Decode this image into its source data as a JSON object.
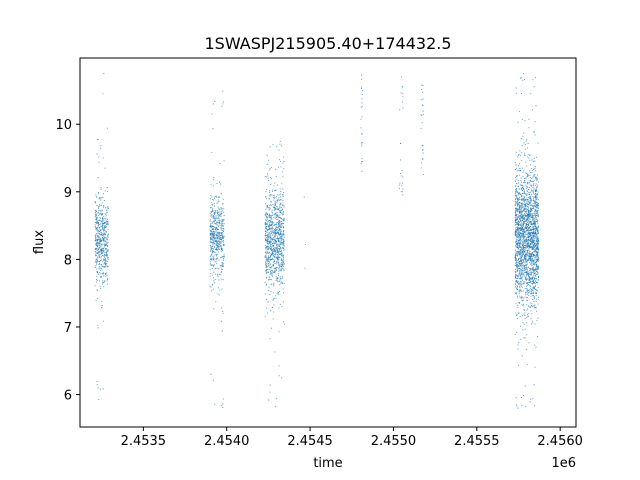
{
  "chart_data": {
    "type": "scatter",
    "title": "1SWASPJ215905.40+174432.5",
    "xlabel": "time",
    "ylabel": "flux",
    "x_offset_label": "1e6",
    "xlim": [
      2453120,
      2456095
    ],
    "ylim": [
      5.52,
      10.98
    ],
    "x_ticks": [
      2453500,
      2454000,
      2454500,
      2455000,
      2455500,
      2456000
    ],
    "x_tick_labels": [
      "2.4535",
      "2.4540",
      "2.4545",
      "2.4550",
      "2.4555",
      "2.4560"
    ],
    "y_ticks": [
      6,
      7,
      8,
      9,
      10
    ],
    "y_tick_labels": [
      "6",
      "7",
      "8",
      "9",
      "10"
    ],
    "grid": false,
    "marker_color": "#1f77b4",
    "series": [
      {
        "clusters": [
          {
            "x_range": [
              2453210,
              2453290
            ],
            "center": 8.3,
            "spread": 0.32,
            "tail_low": 5.9,
            "tail_high": 9.95,
            "density": 1.0
          },
          {
            "x_range": [
              2453900,
              2453985
            ],
            "center": 8.35,
            "spread": 0.3,
            "tail_low": 5.8,
            "tail_high": 10.65,
            "density": 0.95
          },
          {
            "x_range": [
              2454230,
              2454345
            ],
            "center": 8.3,
            "spread": 0.38,
            "tail_low": 5.8,
            "tail_high": 9.75,
            "density": 1.25
          },
          {
            "x_range": [
              2454805,
              2454815
            ],
            "center": 9.9,
            "spread": 0.45,
            "tail_low": 9.2,
            "tail_high": 10.75,
            "density": 0.04
          },
          {
            "x_range": [
              2455035,
              2455060
            ],
            "center": 9.3,
            "spread": 0.35,
            "tail_low": 8.95,
            "tail_high": 10.7,
            "density": 0.04
          },
          {
            "x_range": [
              2455165,
              2455180
            ],
            "center": 10.0,
            "spread": 0.3,
            "tail_low": 9.2,
            "tail_high": 10.6,
            "density": 0.05
          },
          {
            "x_range": [
              2455730,
              2455870
            ],
            "center": 8.3,
            "spread": 0.5,
            "tail_low": 5.75,
            "tail_high": 10.75,
            "density": 2.4
          }
        ],
        "sparse_points": [
          {
            "x": 2453263,
            "y": 10.75
          },
          {
            "x": 2453257,
            "y": 10.45
          },
          {
            "x": 2453912,
            "y": 10.15
          },
          {
            "x": 2454472,
            "y": 8.22
          },
          {
            "x": 2454469,
            "y": 7.87
          },
          {
            "x": 2454465,
            "y": 8.92
          },
          {
            "x": 2455048,
            "y": 10.7
          },
          {
            "x": 2453905,
            "y": 6.3
          }
        ]
      }
    ]
  }
}
